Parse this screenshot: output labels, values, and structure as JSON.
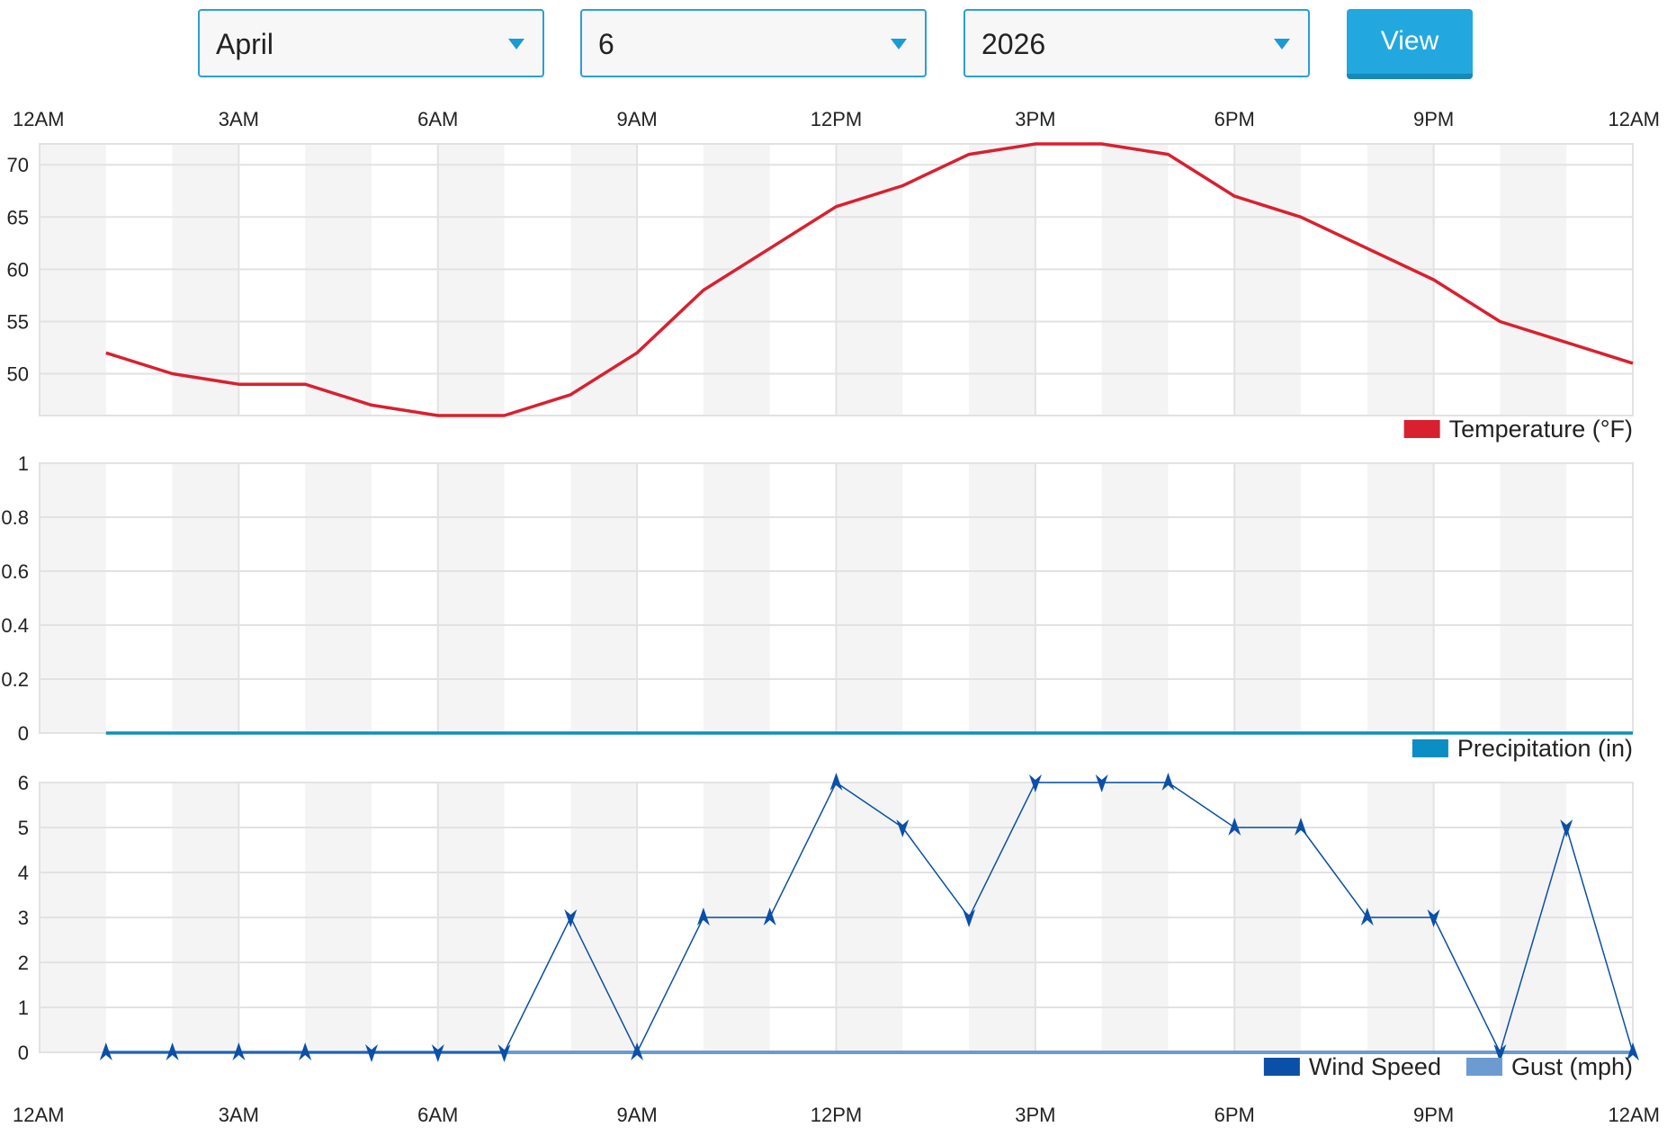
{
  "controls": {
    "month": "April",
    "day": "6",
    "year": "2026",
    "view_label": "View",
    "accent_color": "#22a8de"
  },
  "chart_data": [
    {
      "type": "line",
      "x_labels": [
        "12AM",
        "3AM",
        "6AM",
        "9AM",
        "12PM",
        "3PM",
        "6PM",
        "9PM",
        "12AM"
      ],
      "x": [
        "1AM",
        "2AM",
        "3AM",
        "4AM",
        "5AM",
        "6AM",
        "7AM",
        "8AM",
        "9AM",
        "10AM",
        "11AM",
        "12PM",
        "1PM",
        "2PM",
        "3PM",
        "4PM",
        "5PM",
        "6PM",
        "7PM",
        "8PM",
        "9PM",
        "10PM",
        "11PM",
        "12AM"
      ],
      "series": [
        {
          "name": "Temperature (°F)",
          "color": "#d9202f",
          "values": [
            52,
            50,
            49,
            49,
            47,
            46,
            46,
            48,
            52,
            58,
            62,
            66,
            68,
            71,
            72,
            72,
            71,
            67,
            65,
            62,
            59,
            55,
            53,
            51
          ]
        }
      ],
      "yticks": [
        50,
        55,
        60,
        65,
        70
      ],
      "ylim": [
        46,
        72
      ],
      "grid": true,
      "legend": "bottom-right"
    },
    {
      "type": "line",
      "x": [
        "1AM",
        "2AM",
        "3AM",
        "4AM",
        "5AM",
        "6AM",
        "7AM",
        "8AM",
        "9AM",
        "10AM",
        "11AM",
        "12PM",
        "1PM",
        "2PM",
        "3PM",
        "4PM",
        "5PM",
        "6PM",
        "7PM",
        "8PM",
        "9PM",
        "10PM",
        "11PM",
        "12AM"
      ],
      "series": [
        {
          "name": "Precipitation (in)",
          "color": "#0b8ec4",
          "values": [
            0,
            0,
            0,
            0,
            0,
            0,
            0,
            0,
            0,
            0,
            0,
            0,
            0,
            0,
            0,
            0,
            0,
            0,
            0,
            0,
            0,
            0,
            0,
            0
          ]
        }
      ],
      "yticks": [
        "0",
        "0.2",
        "0.4",
        "0.6",
        "0.8",
        "1"
      ],
      "ylim": [
        0,
        1
      ],
      "grid": true,
      "legend": "bottom-right"
    },
    {
      "type": "line",
      "x_labels": [
        "12AM",
        "3AM",
        "6AM",
        "9AM",
        "12PM",
        "3PM",
        "6PM",
        "9PM",
        "12AM"
      ],
      "x": [
        "1AM",
        "2AM",
        "3AM",
        "4AM",
        "5AM",
        "6AM",
        "7AM",
        "8AM",
        "9AM",
        "10AM",
        "11AM",
        "12PM",
        "1PM",
        "2PM",
        "3PM",
        "4PM",
        "5PM",
        "6PM",
        "7PM",
        "8PM",
        "9PM",
        "10PM",
        "11PM",
        "12AM"
      ],
      "series": [
        {
          "name": "Wind Speed",
          "color": "#0a4fa8",
          "values": [
            0,
            0,
            0,
            0,
            0,
            0,
            0,
            3,
            0,
            3,
            3,
            6,
            5,
            3,
            6,
            6,
            6,
            5,
            5,
            3,
            3,
            0,
            5,
            0
          ]
        },
        {
          "name": "Gust (mph)",
          "color": "#6b9bd1",
          "values": [
            0,
            0,
            0,
            0,
            0,
            0,
            0,
            0,
            0,
            0,
            0,
            0,
            0,
            0,
            0,
            0,
            0,
            0,
            0,
            0,
            0,
            0,
            0,
            0
          ]
        }
      ],
      "yticks": [
        0,
        1,
        2,
        3,
        4,
        5,
        6
      ],
      "ylim": [
        0,
        6
      ],
      "grid": true,
      "legend": "bottom-right"
    }
  ]
}
